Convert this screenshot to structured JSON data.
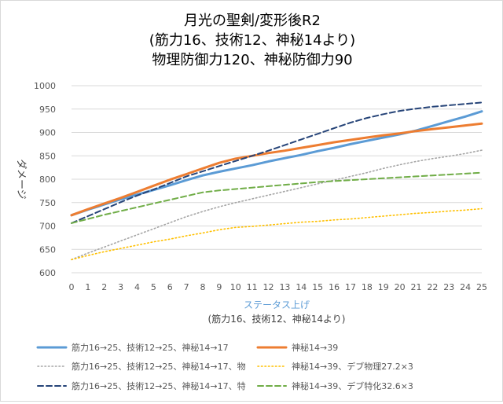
{
  "chart_data": {
    "type": "line",
    "title": [
      "月光の聖剣/変形後R2",
      "(筋力16、技術12、神秘14より)",
      "物理防御力120、神秘防御力90"
    ],
    "xlabel": [
      "ステータス上げ",
      "(筋力16、技術12、神秘14より)"
    ],
    "ylabel": "ダメージ",
    "ylim": [
      600,
      1000
    ],
    "yticks": [
      600,
      650,
      700,
      750,
      800,
      850,
      900,
      950,
      1000
    ],
    "x": [
      0,
      1,
      2,
      3,
      4,
      5,
      6,
      7,
      8,
      9,
      10,
      11,
      12,
      13,
      14,
      15,
      16,
      17,
      18,
      19,
      20,
      21,
      22,
      23,
      24,
      25
    ],
    "grid": true,
    "legend_position": "bottom",
    "series": [
      {
        "name": "筋力16→25、技術12→25、神秘14→17",
        "color": "#5b9bd5",
        "dash": "solid",
        "values": [
          723,
          735,
          746,
          757,
          767,
          777,
          787,
          798,
          808,
          816,
          823,
          830,
          838,
          845,
          852,
          860,
          867,
          875,
          882,
          889,
          896,
          904,
          914,
          924,
          934,
          945
        ]
      },
      {
        "name": "神秘14→39",
        "color": "#ed7d31",
        "dash": "solid",
        "values": [
          723,
          736,
          748,
          760,
          773,
          786,
          799,
          811,
          823,
          835,
          844,
          850,
          856,
          861,
          867,
          873,
          879,
          884,
          889,
          894,
          898,
          903,
          907,
          911,
          915,
          919
        ]
      },
      {
        "name": "筋力16→25、技術12→25、神秘14→17、物",
        "color": "#a5a5a5",
        "dash": "dot",
        "values": [
          628,
          642,
          655,
          668,
          681,
          694,
          707,
          720,
          731,
          741,
          750,
          758,
          766,
          774,
          782,
          790,
          798,
          806,
          814,
          823,
          831,
          838,
          844,
          849,
          855,
          862
        ]
      },
      {
        "name": "神秘14→39、デブ物理27.2×3",
        "color": "#ffc000",
        "dash": "dot",
        "values": [
          628,
          637,
          645,
          652,
          659,
          666,
          672,
          679,
          685,
          692,
          697,
          699,
          702,
          705,
          708,
          710,
          713,
          715,
          718,
          721,
          724,
          727,
          729,
          732,
          734,
          737
        ]
      },
      {
        "name": "筋力16→25、技術12→25、神秘14→17、特",
        "color": "#264478",
        "dash": "dash",
        "values": [
          706,
          721,
          736,
          751,
          765,
          778,
          792,
          806,
          817,
          828,
          839,
          850,
          861,
          873,
          885,
          897,
          909,
          921,
          931,
          939,
          946,
          951,
          955,
          958,
          961,
          964
        ]
      },
      {
        "name": "神秘14→39、デブ特化32.6×3",
        "color": "#70ad47",
        "dash": "dash",
        "values": [
          706,
          715,
          724,
          732,
          740,
          748,
          756,
          764,
          772,
          776,
          779,
          782,
          785,
          788,
          791,
          794,
          796,
          798,
          800,
          802,
          804,
          806,
          808,
          810,
          812,
          814
        ]
      }
    ]
  }
}
